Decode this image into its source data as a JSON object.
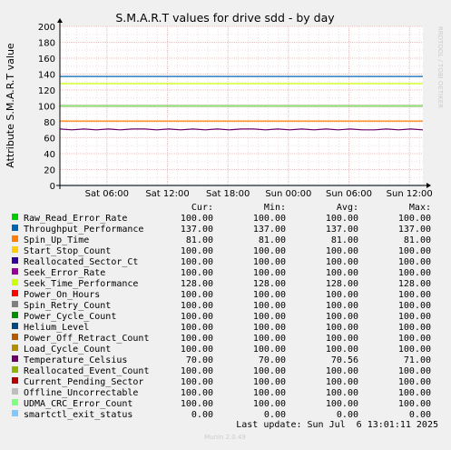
{
  "chart_data": {
    "type": "line",
    "title": "S.M.A.R.T values for drive sdd - by day",
    "ylabel": "Attribute S.M.A.R.T value",
    "xlabel": "",
    "side_label": "RRDTOOL / TOBI OETIKER",
    "ylim": [
      0,
      200
    ],
    "yticks": [
      0,
      20,
      40,
      60,
      80,
      100,
      120,
      140,
      160,
      180,
      200
    ],
    "xlim": [
      "Sat 01:20",
      "Sun 13:20"
    ],
    "xticks": [
      "Sat 06:00",
      "Sat 12:00",
      "Sat 18:00",
      "Sun 00:00",
      "Sun 06:00",
      "Sun 12:00"
    ],
    "grid": true,
    "legend_position": "bottom",
    "legend_headers": {
      "cur": "Cur:",
      "min": "Min:",
      "avg": "Avg:",
      "max": "Max:"
    },
    "series": [
      {
        "name": "Raw_Read_Error_Rate",
        "color": "#00cc00",
        "values": [
          100,
          100
        ],
        "cur": "100.00",
        "min": "100.00",
        "avg": "100.00",
        "max": "100.00"
      },
      {
        "name": "Throughput_Performance",
        "color": "#0066b3",
        "values": [
          137,
          137
        ],
        "cur": "137.00",
        "min": "137.00",
        "avg": "137.00",
        "max": "137.00"
      },
      {
        "name": "Spin_Up_Time",
        "color": "#ff8000",
        "values": [
          81,
          81
        ],
        "cur": "81.00",
        "min": "81.00",
        "avg": "81.00",
        "max": "81.00"
      },
      {
        "name": "Start_Stop_Count",
        "color": "#ffcc00",
        "values": [
          100,
          100
        ],
        "cur": "100.00",
        "min": "100.00",
        "avg": "100.00",
        "max": "100.00"
      },
      {
        "name": "Reallocated_Sector_Ct",
        "color": "#330099",
        "values": [
          100,
          100
        ],
        "cur": "100.00",
        "min": "100.00",
        "avg": "100.00",
        "max": "100.00"
      },
      {
        "name": "Seek_Error_Rate",
        "color": "#990099",
        "values": [
          100,
          100
        ],
        "cur": "100.00",
        "min": "100.00",
        "avg": "100.00",
        "max": "100.00"
      },
      {
        "name": "Seek_Time_Performance",
        "color": "#ccff00",
        "values": [
          128,
          128
        ],
        "cur": "128.00",
        "min": "128.00",
        "avg": "128.00",
        "max": "128.00"
      },
      {
        "name": "Power_On_Hours",
        "color": "#ff0000",
        "values": [
          100,
          100
        ],
        "cur": "100.00",
        "min": "100.00",
        "avg": "100.00",
        "max": "100.00"
      },
      {
        "name": "Spin_Retry_Count",
        "color": "#808080",
        "values": [
          100,
          100
        ],
        "cur": "100.00",
        "min": "100.00",
        "avg": "100.00",
        "max": "100.00"
      },
      {
        "name": "Power_Cycle_Count",
        "color": "#008f00",
        "values": [
          100,
          100
        ],
        "cur": "100.00",
        "min": "100.00",
        "avg": "100.00",
        "max": "100.00"
      },
      {
        "name": "Helium_Level",
        "color": "#00487d",
        "values": [
          100,
          100
        ],
        "cur": "100.00",
        "min": "100.00",
        "avg": "100.00",
        "max": "100.00"
      },
      {
        "name": "Power_Off_Retract_Count",
        "color": "#b35a00",
        "values": [
          100,
          100
        ],
        "cur": "100.00",
        "min": "100.00",
        "avg": "100.00",
        "max": "100.00"
      },
      {
        "name": "Load_Cycle_Count",
        "color": "#b38f00",
        "values": [
          100,
          100
        ],
        "cur": "100.00",
        "min": "100.00",
        "avg": "100.00",
        "max": "100.00"
      },
      {
        "name": "Temperature_Celsius",
        "color": "#6b006b",
        "values": [
          71,
          70,
          71,
          70,
          71,
          70,
          71,
          71,
          70,
          71,
          70,
          71,
          70,
          71,
          70,
          71,
          71,
          70,
          71,
          70,
          71,
          70,
          71,
          70,
          71,
          70,
          70,
          71,
          70,
          71,
          70
        ],
        "cur": "70.00",
        "min": "70.00",
        "avg": "70.56",
        "max": "71.00"
      },
      {
        "name": "Reallocated_Event_Count",
        "color": "#8fb300",
        "values": [
          100,
          100
        ],
        "cur": "100.00",
        "min": "100.00",
        "avg": "100.00",
        "max": "100.00"
      },
      {
        "name": "Current_Pending_Sector",
        "color": "#b30000",
        "values": [
          100,
          100
        ],
        "cur": "100.00",
        "min": "100.00",
        "avg": "100.00",
        "max": "100.00"
      },
      {
        "name": "Offline_Uncorrectable",
        "color": "#bebebe",
        "values": [
          100,
          100
        ],
        "cur": "100.00",
        "min": "100.00",
        "avg": "100.00",
        "max": "100.00"
      },
      {
        "name": "UDMA_CRC_Error_Count",
        "color": "#80ff80",
        "values": [
          100,
          100
        ],
        "cur": "100.00",
        "min": "100.00",
        "avg": "100.00",
        "max": "100.00"
      },
      {
        "name": "smartctl_exit_status",
        "color": "#80c9ff",
        "values": [
          0,
          0
        ],
        "cur": "0.00",
        "min": "0.00",
        "avg": "0.00",
        "max": "0.00"
      }
    ]
  },
  "footer": {
    "last_update": "Last update: Sun Jul  6 13:01:11 2025",
    "version": "Munin 2.0.49"
  }
}
